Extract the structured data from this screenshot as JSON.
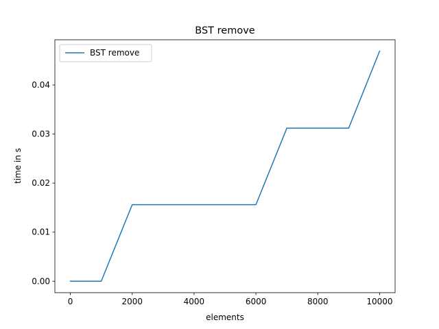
{
  "chart_data": {
    "type": "line",
    "title": "BST remove",
    "xlabel": "elements",
    "ylabel": "time in s",
    "xlim": [
      -500,
      10500
    ],
    "ylim": [
      -0.00234,
      0.04922
    ],
    "xticks": [
      0,
      2000,
      4000,
      6000,
      8000,
      10000
    ],
    "xtick_labels": [
      "0",
      "2000",
      "4000",
      "6000",
      "8000",
      "10000"
    ],
    "yticks": [
      0.0,
      0.01,
      0.02,
      0.03,
      0.04
    ],
    "ytick_labels": [
      "0.00",
      "0.01",
      "0.02",
      "0.03",
      "0.04"
    ],
    "grid": false,
    "legend_position": "top-left",
    "series": [
      {
        "name": "BST remove",
        "color": "#1f77b4",
        "x": [
          0,
          1000,
          2000,
          3000,
          4000,
          5000,
          6000,
          7000,
          8000,
          9000,
          10000
        ],
        "y": [
          0.0,
          0.0,
          0.0156,
          0.0156,
          0.0156,
          0.0156,
          0.0156,
          0.0312,
          0.0312,
          0.0312,
          0.0469
        ]
      }
    ]
  }
}
